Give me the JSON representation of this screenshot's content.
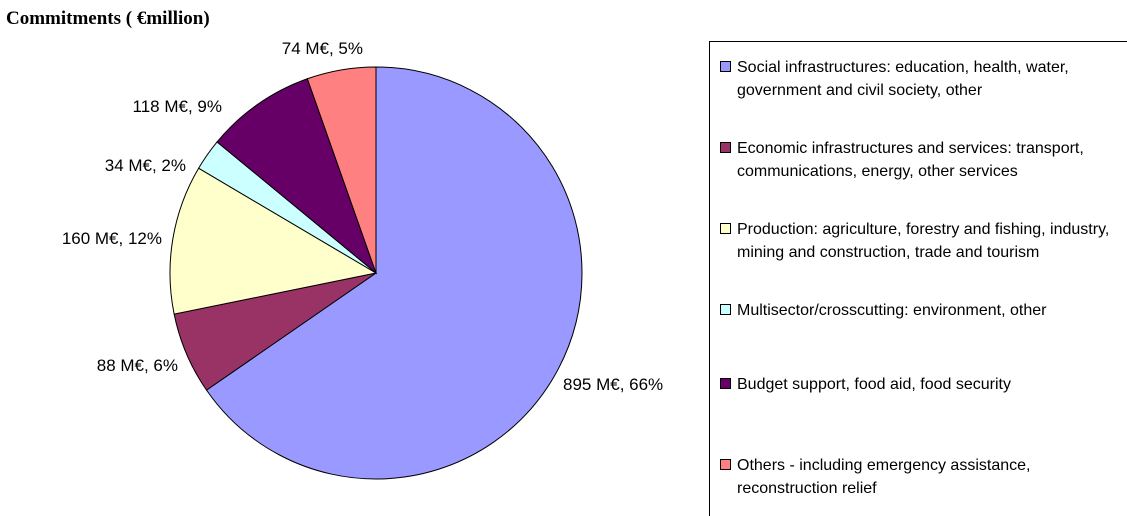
{
  "chart_data": {
    "type": "pie",
    "title": "Commitments ( €million)",
    "unit": "M€",
    "slices": [
      {
        "label": "Social infrastructures: education, health, water, government and civil society, other",
        "value": 895,
        "percent": 66,
        "display": "895 M€, 66%",
        "color": "#9999ff"
      },
      {
        "label": "Economic infrastructures and services: transport, communications, energy, other services",
        "value": 88,
        "percent": 6,
        "display": "88 M€, 6%",
        "color": "#993366"
      },
      {
        "label": "Production: agriculture, forestry and fishing, industry, mining and construction, trade and tourism",
        "value": 160,
        "percent": 12,
        "display": "160 M€, 12%",
        "color": "#ffffcc"
      },
      {
        "label": "Multisector/crosscutting: environment, other",
        "value": 34,
        "percent": 2,
        "display": "34 M€, 2%",
        "color": "#ccffff"
      },
      {
        "label": "Budget support, food aid, food security",
        "value": 118,
        "percent": 9,
        "display": "118 M€, 9%",
        "color": "#660066"
      },
      {
        "label": "Others - including emergency assistance, reconstruction relief",
        "value": 74,
        "percent": 5,
        "display": "74 M€, 5%",
        "color": "#ff8080"
      }
    ],
    "start_angle": "12 o'clock",
    "direction": "clockwise",
    "legend_position": "right"
  }
}
